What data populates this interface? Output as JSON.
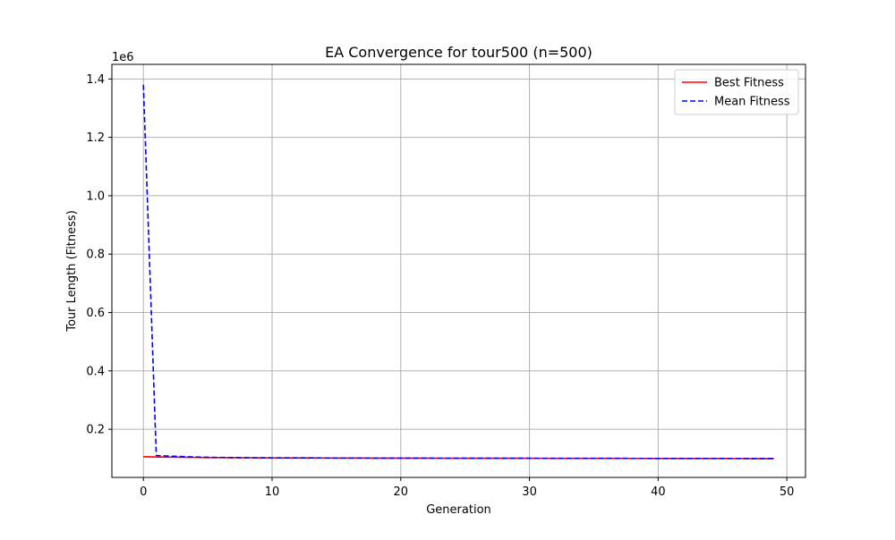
{
  "chart_data": {
    "type": "line",
    "title": "EA Convergence for tour500 (n=500)",
    "xlabel": "Generation",
    "ylabel": "Tour Length (Fitness)",
    "y_offset_label": "1e6",
    "xlim": [
      -2.45,
      51.45
    ],
    "ylim": [
      35000,
      1450000
    ],
    "x_ticks": [
      0,
      10,
      20,
      30,
      40,
      50
    ],
    "x_tick_labels": [
      "0",
      "10",
      "20",
      "30",
      "40",
      "50"
    ],
    "y_ticks": [
      200000,
      400000,
      600000,
      800000,
      1000000,
      1200000,
      1400000
    ],
    "y_tick_labels": [
      "0.2",
      "0.4",
      "0.6",
      "0.8",
      "1.0",
      "1.2",
      "1.4"
    ],
    "grid": true,
    "legend_position": "upper right",
    "series": [
      {
        "name": "Best Fitness",
        "color": "#ff0000",
        "style": "solid",
        "x": [
          0,
          1,
          2,
          3,
          4,
          5,
          6,
          7,
          8,
          9,
          10,
          11,
          12,
          13,
          14,
          15,
          16,
          17,
          18,
          19,
          20,
          21,
          22,
          23,
          24,
          25,
          26,
          27,
          28,
          29,
          30,
          31,
          32,
          33,
          34,
          35,
          36,
          37,
          38,
          39,
          40,
          41,
          42,
          43,
          44,
          45,
          46,
          47,
          48,
          49
        ],
        "y": [
          106000,
          105000,
          104500,
          104000,
          103500,
          103000,
          102800,
          102600,
          102400,
          102200,
          102000,
          101900,
          101800,
          101700,
          101600,
          101500,
          101400,
          101300,
          101200,
          101100,
          101000,
          100950,
          100900,
          100850,
          100800,
          100750,
          100700,
          100650,
          100600,
          100550,
          100500,
          100450,
          100400,
          100350,
          100300,
          100250,
          100200,
          100150,
          100100,
          100050,
          100000,
          99950,
          99900,
          99850,
          99800,
          99750,
          99700,
          99650,
          99600,
          99550
        ]
      },
      {
        "name": "Mean Fitness",
        "color": "#0000ff",
        "style": "dashed",
        "x": [
          0,
          1,
          2,
          3,
          4,
          5,
          6,
          7,
          8,
          9,
          10,
          11,
          12,
          13,
          14,
          15,
          16,
          17,
          18,
          19,
          20,
          21,
          22,
          23,
          24,
          25,
          26,
          27,
          28,
          29,
          30,
          31,
          32,
          33,
          34,
          35,
          36,
          37,
          38,
          39,
          40,
          41,
          42,
          43,
          44,
          45,
          46,
          47,
          48,
          49
        ],
        "y": [
          1380000,
          110000,
          108000,
          106500,
          105000,
          104000,
          103400,
          102900,
          102500,
          102200,
          102000,
          101900,
          101800,
          101700,
          101600,
          101500,
          101400,
          101300,
          101200,
          101100,
          101000,
          100950,
          100900,
          100850,
          100800,
          100750,
          100700,
          100650,
          100600,
          100550,
          100500,
          100450,
          100400,
          100350,
          100300,
          100250,
          100200,
          100150,
          100100,
          100050,
          100000,
          99950,
          99900,
          99850,
          99800,
          99750,
          99700,
          99650,
          99600,
          99550
        ]
      }
    ]
  }
}
